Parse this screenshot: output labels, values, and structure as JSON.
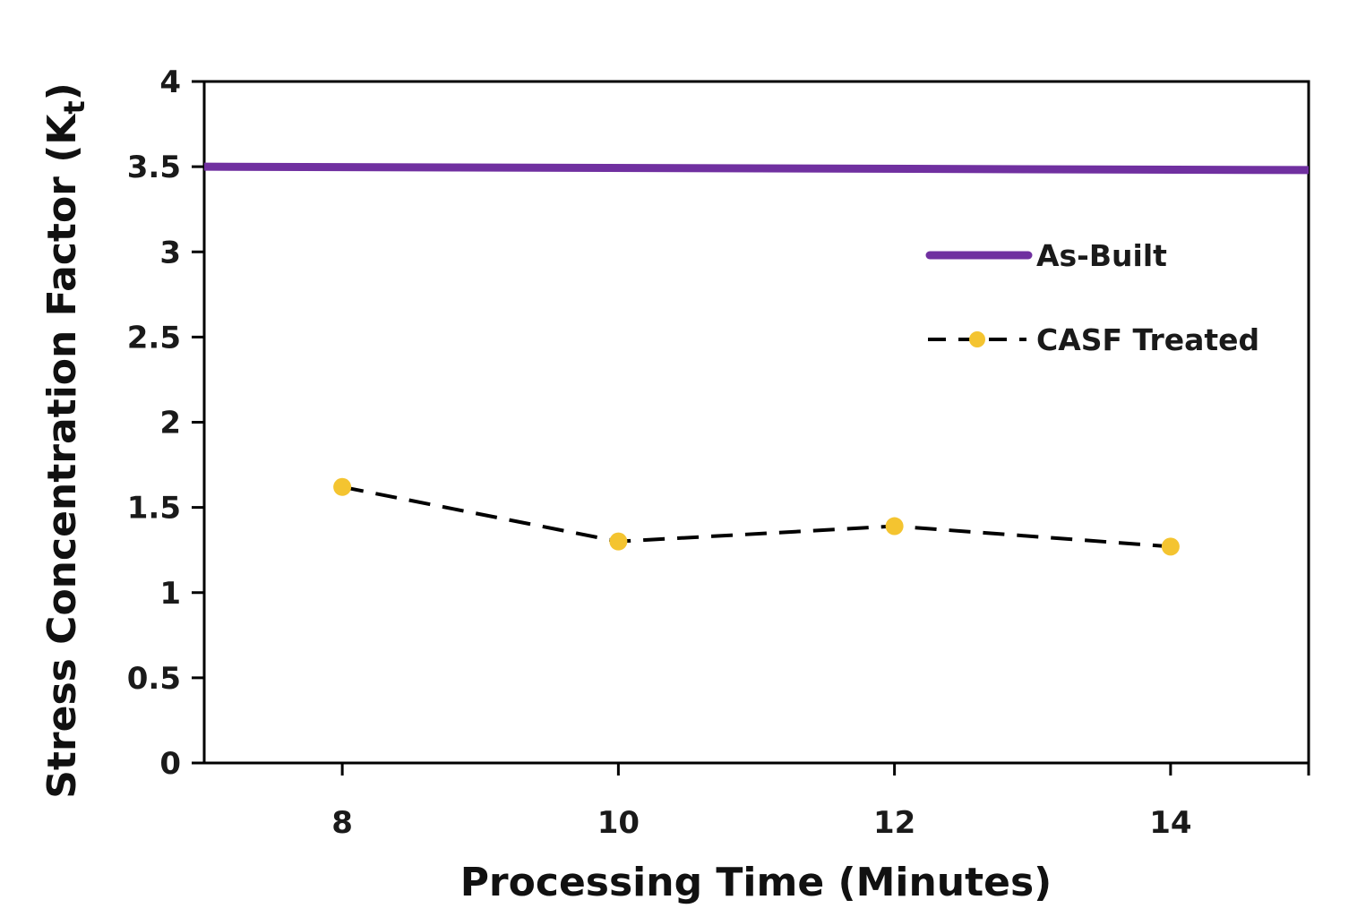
{
  "chart_data": {
    "type": "line",
    "title": "",
    "xlabel": "Processing Time (Minutes)",
    "ylabel": "Stress Concentration  Factor (K",
    "ylabel_subscript": "t",
    "ylabel_close": ")",
    "xlim": [
      7,
      15
    ],
    "ylim": [
      0,
      4
    ],
    "x_ticks": [
      8,
      10,
      12,
      14
    ],
    "y_ticks": [
      0,
      0.5,
      1,
      1.5,
      2,
      2.5,
      3,
      3.5,
      4
    ],
    "grid": false,
    "legend_position": "right-center",
    "series": [
      {
        "name": "As-Built",
        "style": "solid",
        "color": "#7030a0",
        "x": [
          7,
          15
        ],
        "y": [
          3.5,
          3.48
        ]
      },
      {
        "name": "CASF Treated",
        "style": "dashed",
        "color": "#000000",
        "marker_color": "#f4c430",
        "x": [
          8,
          10,
          12,
          14
        ],
        "y": [
          1.62,
          1.3,
          1.39,
          1.27
        ]
      }
    ]
  }
}
